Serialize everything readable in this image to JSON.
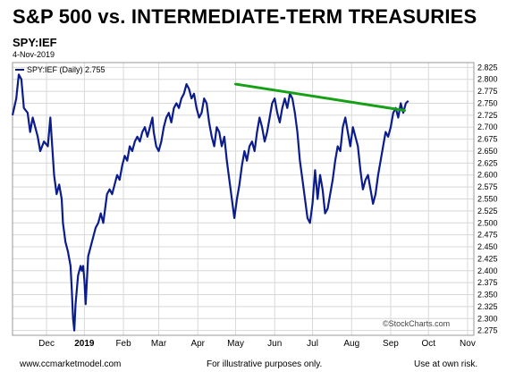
{
  "header": {
    "title": "S&P 500 vs. INTERMEDIATE-TERM TREASURIES",
    "ticker": "SPY:IEF",
    "date": "4-Nov-2019"
  },
  "footer": {
    "website": "www.ccmarketmodel.com",
    "note": "For illustrative purposes only.",
    "disclaimer": "Use at own risk."
  },
  "colors": {
    "series": "#0b1c8c",
    "trendline": "#16a016",
    "grid": "#d8d8d8"
  },
  "chart_data": {
    "type": "line",
    "watermark": "©StockCharts.com",
    "legend": {
      "label": "SPY:IEF (Daily) 2.755",
      "placement": "top-left"
    },
    "grid": true,
    "ylim": [
      2.265,
      2.835
    ],
    "y_ticks": [
      "2.825",
      "2.800",
      "2.775",
      "2.750",
      "2.725",
      "2.700",
      "2.675",
      "2.650",
      "2.625",
      "2.600",
      "2.575",
      "2.550",
      "2.525",
      "2.500",
      "2.475",
      "2.450",
      "2.425",
      "2.400",
      "2.375",
      "2.350",
      "2.325",
      "2.300",
      "2.275"
    ],
    "x_axis": {
      "start_day": 0,
      "end_day": 280,
      "ticks": [
        {
          "label": "Dec",
          "day": 27,
          "bold": false
        },
        {
          "label": "2019",
          "day": 57,
          "bold": true
        },
        {
          "label": "Feb",
          "day": 88,
          "bold": false
        },
        {
          "label": "Mar",
          "day": 116,
          "bold": false
        },
        {
          "label": "Apr",
          "day": 147,
          "bold": false
        },
        {
          "label": "May",
          "day": 177,
          "bold": false
        },
        {
          "label": "Jun",
          "day": 208,
          "bold": false
        },
        {
          "label": "Jul",
          "day": 238,
          "bold": false
        },
        {
          "label": "Aug",
          "day": 269,
          "bold": false
        },
        {
          "label": "Sep",
          "day": 300,
          "bold": false
        },
        {
          "label": "Oct",
          "day": 330,
          "bold": false
        },
        {
          "label": "Nov",
          "day": 361,
          "bold": false
        }
      ]
    },
    "series": [
      {
        "values": [
          [
            0,
            2.725
          ],
          [
            3,
            2.76
          ],
          [
            5,
            2.81
          ],
          [
            7,
            2.8
          ],
          [
            9,
            2.74
          ],
          [
            12,
            2.73
          ],
          [
            14,
            2.69
          ],
          [
            16,
            2.72
          ],
          [
            18,
            2.7
          ],
          [
            20,
            2.68
          ],
          [
            22,
            2.65
          ],
          [
            25,
            2.67
          ],
          [
            28,
            2.66
          ],
          [
            30,
            2.72
          ],
          [
            31,
            2.68
          ],
          [
            33,
            2.6
          ],
          [
            35,
            2.56
          ],
          [
            37,
            2.58
          ],
          [
            39,
            2.55
          ],
          [
            40,
            2.5
          ],
          [
            42,
            2.46
          ],
          [
            44,
            2.44
          ],
          [
            46,
            2.41
          ],
          [
            47,
            2.36
          ],
          [
            48,
            2.3
          ],
          [
            49,
            2.275
          ],
          [
            50,
            2.33
          ],
          [
            52,
            2.39
          ],
          [
            54,
            2.41
          ],
          [
            55,
            2.4
          ],
          [
            56,
            2.41
          ],
          [
            57,
            2.38
          ],
          [
            58,
            2.33
          ],
          [
            59,
            2.38
          ],
          [
            60,
            2.43
          ],
          [
            62,
            2.45
          ],
          [
            64,
            2.47
          ],
          [
            66,
            2.49
          ],
          [
            68,
            2.5
          ],
          [
            70,
            2.52
          ],
          [
            72,
            2.5
          ],
          [
            74,
            2.54
          ],
          [
            75,
            2.56
          ],
          [
            77,
            2.57
          ],
          [
            79,
            2.56
          ],
          [
            81,
            2.58
          ],
          [
            83,
            2.6
          ],
          [
            85,
            2.59
          ],
          [
            87,
            2.62
          ],
          [
            89,
            2.64
          ],
          [
            91,
            2.63
          ],
          [
            93,
            2.66
          ],
          [
            95,
            2.65
          ],
          [
            97,
            2.67
          ],
          [
            99,
            2.68
          ],
          [
            101,
            2.67
          ],
          [
            103,
            2.69
          ],
          [
            105,
            2.7
          ],
          [
            107,
            2.68
          ],
          [
            109,
            2.7
          ],
          [
            111,
            2.72
          ],
          [
            112,
            2.69
          ],
          [
            114,
            2.66
          ],
          [
            116,
            2.65
          ],
          [
            118,
            2.67
          ],
          [
            120,
            2.7
          ],
          [
            122,
            2.72
          ],
          [
            124,
            2.73
          ],
          [
            126,
            2.71
          ],
          [
            128,
            2.74
          ],
          [
            130,
            2.75
          ],
          [
            132,
            2.74
          ],
          [
            134,
            2.76
          ],
          [
            136,
            2.77
          ],
          [
            138,
            2.79
          ],
          [
            140,
            2.78
          ],
          [
            142,
            2.76
          ],
          [
            144,
            2.77
          ],
          [
            146,
            2.74
          ],
          [
            148,
            2.72
          ],
          [
            150,
            2.73
          ],
          [
            152,
            2.76
          ],
          [
            154,
            2.75
          ],
          [
            156,
            2.71
          ],
          [
            158,
            2.68
          ],
          [
            160,
            2.66
          ],
          [
            162,
            2.7
          ],
          [
            164,
            2.69
          ],
          [
            166,
            2.66
          ],
          [
            168,
            2.68
          ],
          [
            170,
            2.63
          ],
          [
            172,
            2.59
          ],
          [
            174,
            2.55
          ],
          [
            176,
            2.51
          ],
          [
            178,
            2.55
          ],
          [
            180,
            2.58
          ],
          [
            182,
            2.62
          ],
          [
            184,
            2.65
          ],
          [
            186,
            2.63
          ],
          [
            188,
            2.66
          ],
          [
            190,
            2.67
          ],
          [
            192,
            2.65
          ],
          [
            194,
            2.69
          ],
          [
            196,
            2.72
          ],
          [
            198,
            2.7
          ],
          [
            200,
            2.67
          ],
          [
            202,
            2.69
          ],
          [
            204,
            2.72
          ],
          [
            206,
            2.75
          ],
          [
            208,
            2.76
          ],
          [
            210,
            2.73
          ],
          [
            212,
            2.71
          ],
          [
            214,
            2.74
          ],
          [
            216,
            2.76
          ],
          [
            218,
            2.74
          ],
          [
            220,
            2.77
          ],
          [
            222,
            2.76
          ],
          [
            224,
            2.73
          ],
          [
            226,
            2.69
          ],
          [
            228,
            2.63
          ],
          [
            230,
            2.59
          ],
          [
            232,
            2.55
          ],
          [
            234,
            2.51
          ],
          [
            236,
            2.5
          ],
          [
            238,
            2.54
          ],
          [
            240,
            2.61
          ],
          [
            242,
            2.55
          ],
          [
            244,
            2.6
          ],
          [
            246,
            2.57
          ],
          [
            248,
            2.52
          ],
          [
            250,
            2.53
          ],
          [
            252,
            2.56
          ],
          [
            254,
            2.59
          ],
          [
            256,
            2.63
          ],
          [
            258,
            2.66
          ],
          [
            260,
            2.65
          ],
          [
            262,
            2.7
          ],
          [
            264,
            2.72
          ],
          [
            266,
            2.69
          ],
          [
            268,
            2.66
          ],
          [
            270,
            2.7
          ],
          [
            272,
            2.68
          ],
          [
            274,
            2.66
          ],
          [
            276,
            2.61
          ],
          [
            278,
            2.57
          ],
          [
            280,
            2.59
          ],
          [
            282,
            2.6
          ],
          [
            284,
            2.57
          ],
          [
            286,
            2.54
          ],
          [
            288,
            2.56
          ],
          [
            290,
            2.6
          ],
          [
            292,
            2.63
          ],
          [
            294,
            2.66
          ],
          [
            296,
            2.69
          ],
          [
            298,
            2.68
          ],
          [
            300,
            2.7
          ],
          [
            302,
            2.73
          ],
          [
            304,
            2.74
          ],
          [
            306,
            2.72
          ],
          [
            308,
            2.75
          ],
          [
            310,
            2.73
          ],
          [
            312,
            2.75
          ],
          [
            314,
            2.755
          ]
        ]
      }
    ],
    "trendline": [
      [
        177,
        2.79
      ],
      [
        311,
        2.735
      ]
    ]
  }
}
